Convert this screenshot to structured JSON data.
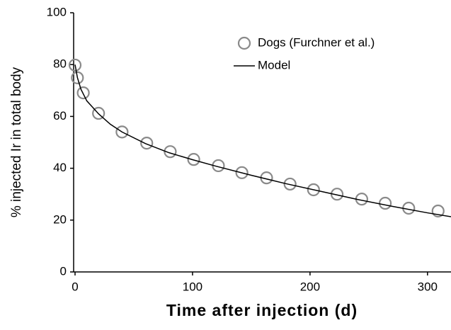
{
  "chart_data": {
    "type": "scatter",
    "x_label": "Time after injection (d)",
    "y_label": "% injected Ir in total body",
    "xlim": [
      0,
      320
    ],
    "ylim": [
      0,
      100
    ],
    "xticks": [
      0,
      100,
      200,
      300
    ],
    "yticks": [
      0,
      20,
      40,
      60,
      80,
      100
    ],
    "series": [
      {
        "name": "Dogs (Furchner et al.)",
        "color": "#8a8a8a",
        "mode": "markers",
        "x": [
          0,
          2,
          7,
          20,
          40,
          61,
          81,
          101,
          122,
          142,
          163,
          183,
          203,
          223,
          244,
          264,
          284,
          309
        ],
        "values": [
          79.8,
          74.9,
          69.1,
          61.2,
          54,
          49.7,
          46.4,
          43.4,
          41,
          38.3,
          36.3,
          33.9,
          31.7,
          30,
          28.1,
          26.5,
          24.6,
          23.5
        ]
      },
      {
        "name": "Model",
        "color": "#000000",
        "mode": "line",
        "x": [
          0,
          2,
          5,
          10,
          20,
          30,
          40,
          60,
          80,
          100,
          120,
          150,
          180,
          210,
          240,
          270,
          300,
          320
        ],
        "values": [
          80,
          75,
          70.5,
          66,
          61,
          57,
          54,
          49.5,
          46,
          43.3,
          40.8,
          37.3,
          34,
          31,
          28,
          25.3,
          22.8,
          21.3
        ]
      }
    ]
  }
}
